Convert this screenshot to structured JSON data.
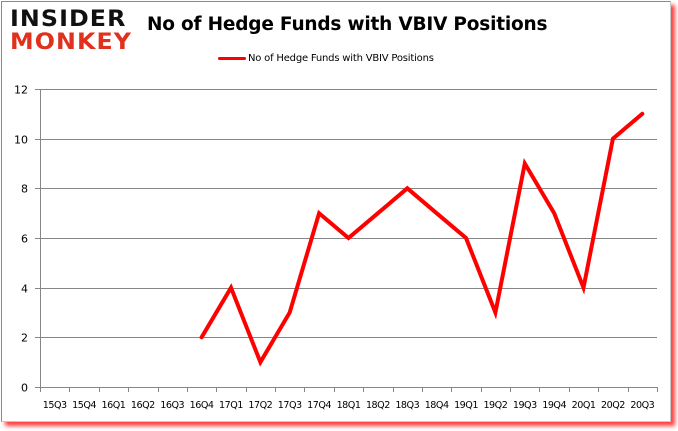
{
  "logo": {
    "line1": "INSIDER",
    "line2": "MONKEY"
  },
  "title": "No of Hedge Funds with VBIV Positions",
  "legend": {
    "label": "No of Hedge Funds with VBIV Positions",
    "color": "#ff0000"
  },
  "colors": {
    "line": "#ff0000",
    "grid": "#868686",
    "shadow": "#ff0000"
  },
  "chart_data": {
    "type": "line",
    "title": "No of Hedge Funds with VBIV Positions",
    "xlabel": "",
    "ylabel": "",
    "ylim": [
      0,
      12
    ],
    "yticks": [
      0,
      2,
      4,
      6,
      8,
      10,
      12
    ],
    "grid": true,
    "legend_position": "top",
    "categories": [
      "15Q3",
      "15Q4",
      "16Q1",
      "16Q2",
      "16Q3",
      "16Q4",
      "17Q1",
      "17Q2",
      "17Q3",
      "17Q4",
      "18Q1",
      "18Q2",
      "18Q3",
      "18Q4",
      "19Q1",
      "19Q2",
      "19Q3",
      "19Q4",
      "20Q1",
      "20Q2",
      "20Q3"
    ],
    "series": [
      {
        "name": "No of Hedge Funds with VBIV Positions",
        "color": "#ff0000",
        "values": [
          null,
          null,
          null,
          null,
          null,
          2,
          4,
          1,
          3,
          7,
          6,
          7,
          8,
          7,
          6,
          3,
          9,
          7,
          4,
          10,
          11
        ]
      }
    ]
  }
}
